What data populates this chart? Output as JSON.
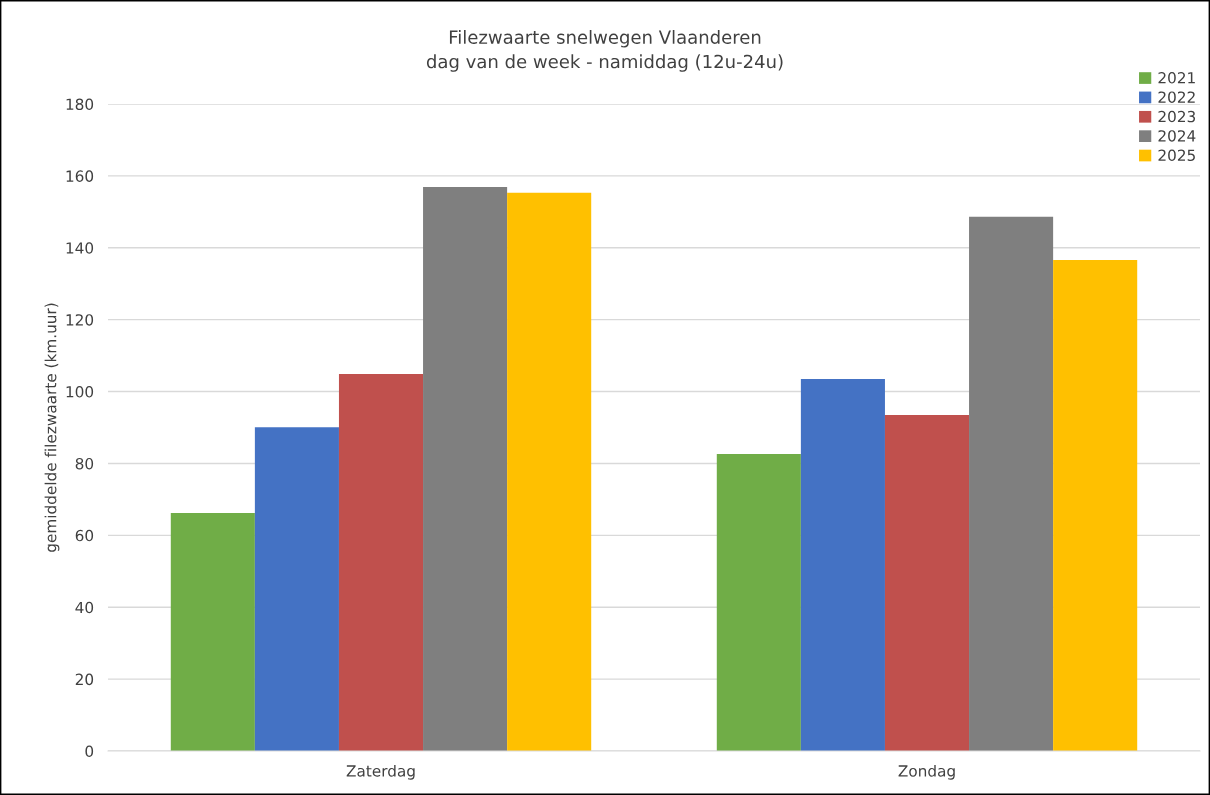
{
  "chart_data": {
    "type": "bar",
    "title": "Filezwaarte snelwegen Vlaanderen\ndag van de week - namiddag (12u-24u)",
    "ylabel": "gemiddelde filezwaarte (km.uur)",
    "categories": [
      "Zaterdag",
      "Zondag"
    ],
    "series": [
      {
        "name": "2021",
        "color": "#70ad47",
        "values": [
          66.2,
          82.6
        ]
      },
      {
        "name": "2022",
        "color": "#4472c4",
        "values": [
          90.1,
          103.5
        ]
      },
      {
        "name": "2023",
        "color": "#c0504d",
        "values": [
          104.9,
          93.5
        ]
      },
      {
        "name": "2024",
        "color": "#7f7f7f",
        "values": [
          156.9,
          148.6
        ]
      },
      {
        "name": "2025",
        "color": "#ffc000",
        "values": [
          155.3,
          136.6
        ]
      }
    ],
    "ylim": [
      0,
      180
    ],
    "yticks": [
      0,
      20,
      40,
      60,
      80,
      100,
      120,
      140,
      160,
      180
    ],
    "grid": "y",
    "legend": "top right"
  }
}
